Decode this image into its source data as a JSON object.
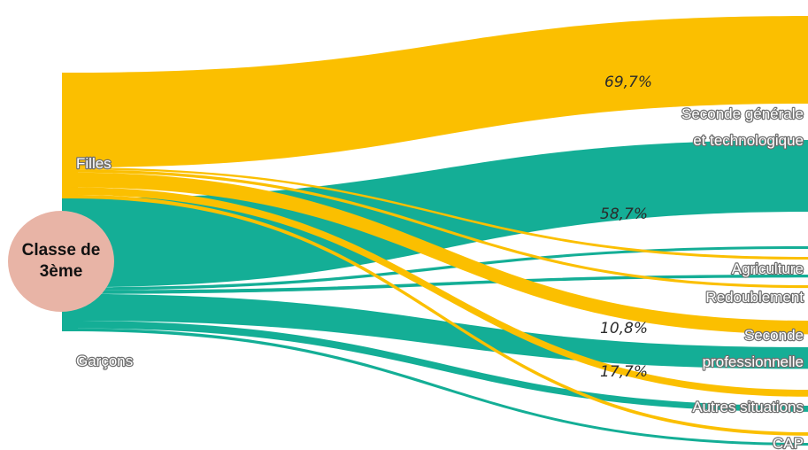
{
  "colors": {
    "filles": "#fbbf00",
    "garcons": "#14ae96",
    "badge": "#e8b4a6",
    "label_outline": "#6f6f6f"
  },
  "source_node": "Classe de\n3ème",
  "chart_data": {
    "type": "sankey",
    "title": "",
    "sources": [
      "Filles",
      "Garçons"
    ],
    "targets": [
      "Seconde générale\net technologique",
      "Agriculture",
      "Redoublement",
      "Seconde\nprofessionnelle",
      "Autres situations",
      "CAP"
    ],
    "series": [
      {
        "name": "Filles",
        "percent_labels": [
          {
            "target": "Seconde générale\net technologique",
            "text": "69,7%",
            "value": 69.7
          },
          {
            "target": "Seconde\nprofessionnelle",
            "text": "10,8%",
            "value": 10.8
          }
        ],
        "flows": [
          {
            "target": "Seconde générale\net technologique",
            "value": 69.7
          },
          {
            "target": "Agriculture",
            "value": 1.5
          },
          {
            "target": "Redoublement",
            "value": 2.2
          },
          {
            "target": "Seconde\nprofessionnelle",
            "value": 10.8
          },
          {
            "target": "Autres situations",
            "value": 5.5
          },
          {
            "target": "CAP",
            "value": 2.7
          }
        ]
      },
      {
        "name": "Garçons",
        "percent_labels": [
          {
            "target": "Seconde générale\net technologique",
            "text": "58,7%",
            "value": 58.7
          },
          {
            "target": "Seconde\nprofessionnelle",
            "text": "17,7%",
            "value": 17.7
          }
        ],
        "flows": [
          {
            "target": "Seconde générale\net technologique",
            "value": 58.7
          },
          {
            "target": "Agriculture",
            "value": 2.0
          },
          {
            "target": "Redoublement",
            "value": 2.4
          },
          {
            "target": "Seconde\nprofessionnelle",
            "value": 17.7
          },
          {
            "target": "Autres situations",
            "value": 5.0
          },
          {
            "target": "CAP",
            "value": 2.0
          }
        ]
      }
    ]
  }
}
